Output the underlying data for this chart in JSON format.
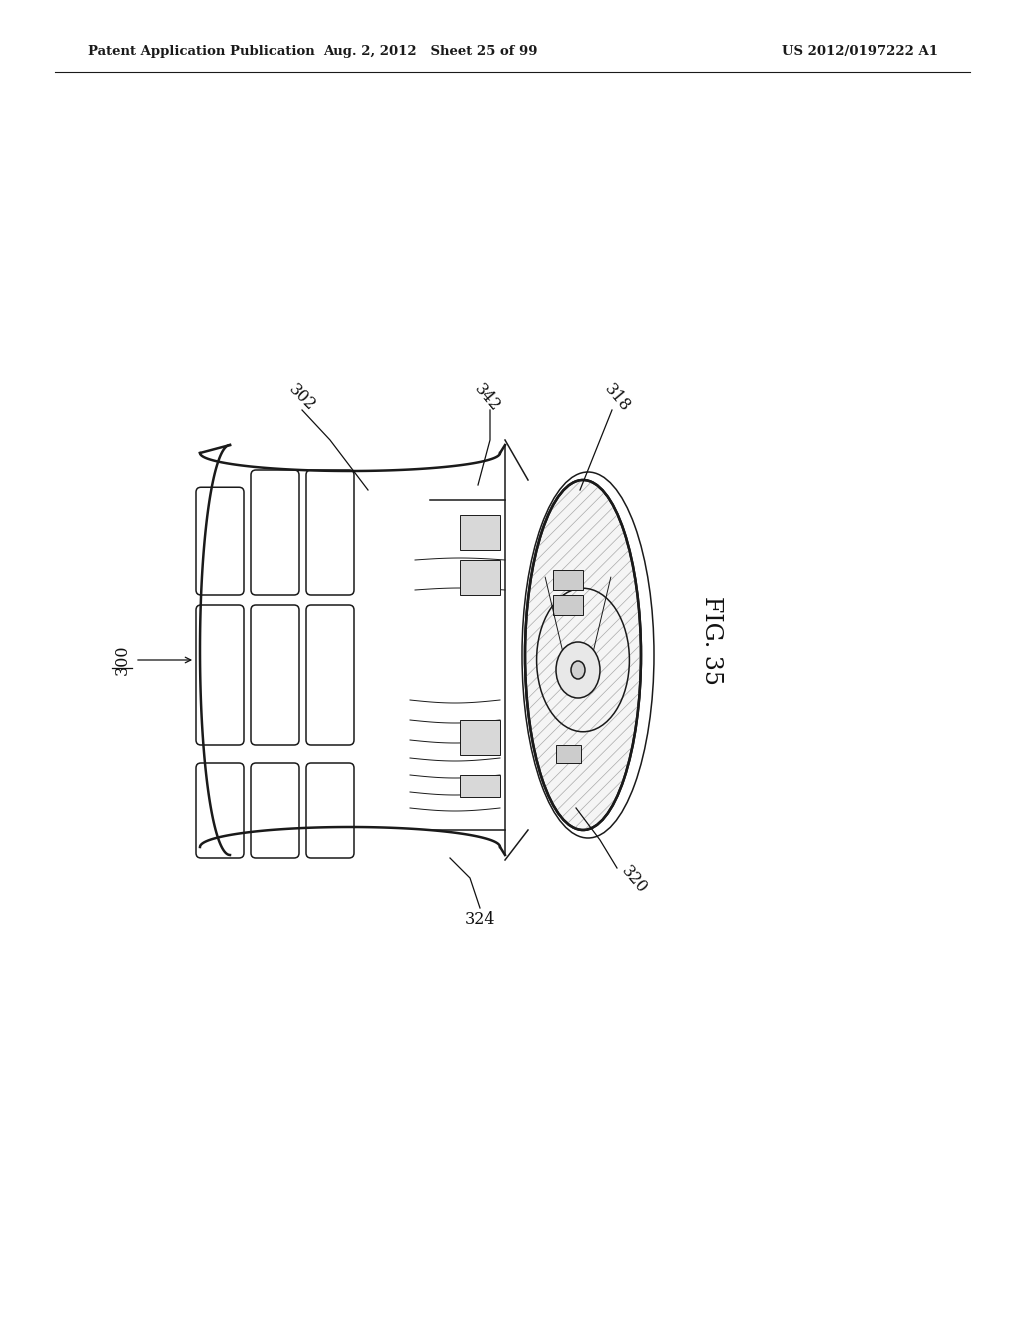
{
  "background_color": "#ffffff",
  "header_left": "Patent Application Publication",
  "header_center": "Aug. 2, 2012   Sheet 25 of 99",
  "header_right": "US 2012/0197222 A1",
  "figure_label": "FIG. 35",
  "line_color": "#1a1a1a",
  "hatch_color": "#888888",
  "label_positions": {
    "300": [
      0.135,
      0.502,
      90
    ],
    "302": [
      0.295,
      0.67,
      -45
    ],
    "318": [
      0.63,
      0.668,
      -55
    ],
    "320": [
      0.608,
      0.422,
      -55
    ],
    "324": [
      0.468,
      0.378,
      0
    ],
    "342": [
      0.488,
      0.672,
      -55
    ]
  }
}
